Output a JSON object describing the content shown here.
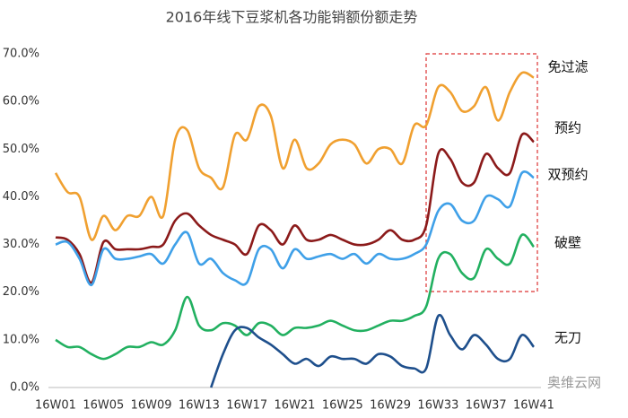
{
  "chart_data": {
    "type": "line",
    "title": "2016年线下豆浆机各功能销额份额走势",
    "categories": [
      "16W01",
      null,
      null,
      null,
      "16W05",
      null,
      null,
      null,
      "16W09",
      null,
      null,
      null,
      "16W13",
      null,
      null,
      null,
      "16W17",
      null,
      null,
      null,
      "16W21",
      null,
      null,
      null,
      "16W25",
      null,
      null,
      null,
      "16W29",
      null,
      null,
      null,
      "16W33",
      null,
      null,
      null,
      "16W37",
      null,
      null,
      null,
      "16W41"
    ],
    "series": [
      {
        "name": "免过滤",
        "color": "#f0a030",
        "values": [
          45,
          41,
          40,
          31,
          36,
          33,
          36,
          36,
          40,
          36,
          52,
          54,
          46,
          44,
          42,
          53,
          52,
          59,
          57,
          46,
          52,
          46,
          47,
          51,
          52,
          51,
          47,
          50,
          50,
          47,
          55,
          55,
          63,
          62,
          58,
          59,
          63,
          56,
          62,
          66,
          65
        ]
      },
      {
        "name": "预约",
        "color": "#8b1a1a",
        "values": [
          31.5,
          31,
          28,
          22,
          30.5,
          29,
          29,
          29,
          29.5,
          30,
          35,
          36.5,
          34,
          32,
          31,
          30,
          28,
          34,
          33,
          30,
          34,
          31,
          31,
          32,
          31,
          30,
          30,
          31,
          33,
          31,
          31,
          34,
          49,
          48,
          43,
          43,
          49,
          46,
          45,
          53,
          51.5
        ]
      },
      {
        "name": "双预约",
        "color": "#3fa0e8",
        "values": [
          30,
          30.5,
          27,
          21.5,
          29,
          27,
          27,
          27.5,
          28,
          26,
          30,
          32.5,
          26,
          27,
          24,
          22.5,
          22,
          29,
          29,
          25,
          29,
          27,
          27.5,
          28,
          27,
          28,
          26,
          28,
          27,
          27,
          28,
          30,
          37,
          38.5,
          35,
          35,
          40,
          39.5,
          38,
          45,
          44
        ]
      },
      {
        "name": "破壁",
        "color": "#22b060",
        "values": [
          10,
          8.5,
          8.5,
          7,
          6,
          7,
          8.5,
          8.5,
          9.5,
          9,
          12,
          19,
          13,
          12,
          13.5,
          13,
          11,
          13.5,
          13,
          11,
          12.5,
          12.5,
          13,
          14,
          13,
          12,
          12,
          13,
          14,
          14,
          15,
          17,
          27,
          28,
          24,
          23,
          29,
          27,
          26,
          32,
          29.5
        ]
      },
      {
        "name": "无刀",
        "color": "#1e4f8c",
        "values": [
          null,
          null,
          null,
          null,
          null,
          null,
          null,
          null,
          null,
          null,
          null,
          null,
          null,
          0,
          7,
          12,
          12.5,
          10.5,
          9,
          7,
          5,
          6,
          4.5,
          6.5,
          6,
          6,
          5,
          7,
          6.5,
          4.5,
          4,
          4,
          15,
          11,
          8,
          11,
          9,
          6,
          6,
          11,
          8.5
        ]
      }
    ],
    "ylim": [
      0,
      70
    ],
    "yticks": [
      {
        "value": 0,
        "label": "0.0%"
      },
      {
        "value": 10,
        "label": "10.0%"
      },
      {
        "value": 20,
        "label": "20.0%"
      },
      {
        "value": 30,
        "label": "30.0%"
      },
      {
        "value": 40,
        "label": "40.0%"
      },
      {
        "value": 50,
        "label": "50.0%"
      },
      {
        "value": 60,
        "label": "60.0%"
      },
      {
        "value": 70,
        "label": "70.0%"
      }
    ],
    "annotation": "奥维云网"
  }
}
